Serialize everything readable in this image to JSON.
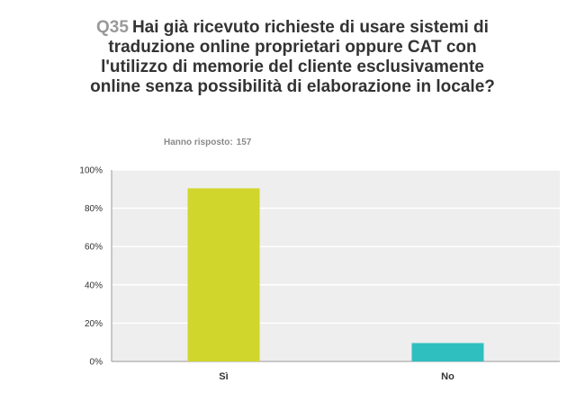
{
  "header": {
    "question_number": "Q35",
    "question_text": "Hai già ricevuto richieste di usare sistemi di traduzione online proprietari oppure CAT con l'utilizzo di memorie del cliente esclusivamente online senza possibilità di elaborazione in locale?",
    "answered_label": "Hanno risposto:",
    "answered_count": "157"
  },
  "chart_data": {
    "type": "bar",
    "categories": [
      "Sì",
      "No"
    ],
    "values": [
      90.4,
      9.6
    ],
    "ylim": [
      0,
      100
    ],
    "yticks": [
      "0%",
      "20%",
      "40%",
      "60%",
      "80%",
      "100%"
    ],
    "colors": [
      "#d0d62b",
      "#2fbfbf"
    ],
    "plot_background": "#eeeeee",
    "grid": true
  }
}
